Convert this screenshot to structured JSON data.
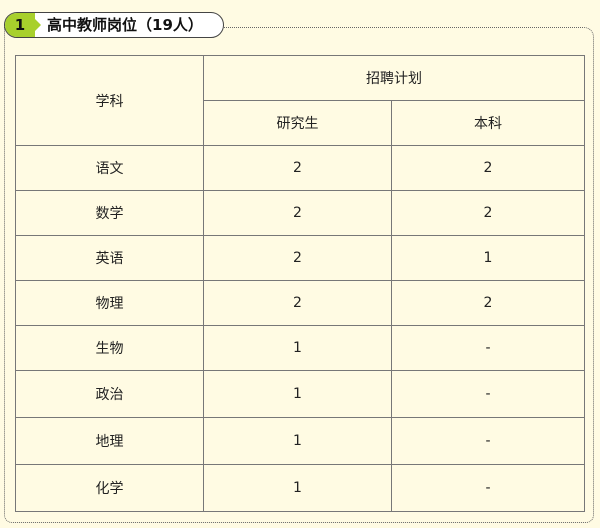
{
  "section": {
    "number": "1",
    "title": "高中教师岗位（19人）"
  },
  "table": {
    "header": {
      "subject": "学科",
      "plan": "招聘计划",
      "graduate": "研究生",
      "undergraduate": "本科"
    },
    "rows": [
      {
        "subject": "语文",
        "graduate": "2",
        "undergraduate": "2"
      },
      {
        "subject": "数学",
        "graduate": "2",
        "undergraduate": "2"
      },
      {
        "subject": "英语",
        "graduate": "2",
        "undergraduate": "1"
      },
      {
        "subject": "物理",
        "graduate": "2",
        "undergraduate": "2"
      },
      {
        "subject": "生物",
        "graduate": "1",
        "undergraduate": "-"
      },
      {
        "subject": "政治",
        "graduate": "1",
        "undergraduate": "-"
      },
      {
        "subject": "地理",
        "graduate": "1",
        "undergraduate": "-"
      },
      {
        "subject": "化学",
        "graduate": "1",
        "undergraduate": "-"
      }
    ]
  },
  "colors": {
    "background": "#fffbe3",
    "accent": "#a8d02c"
  }
}
